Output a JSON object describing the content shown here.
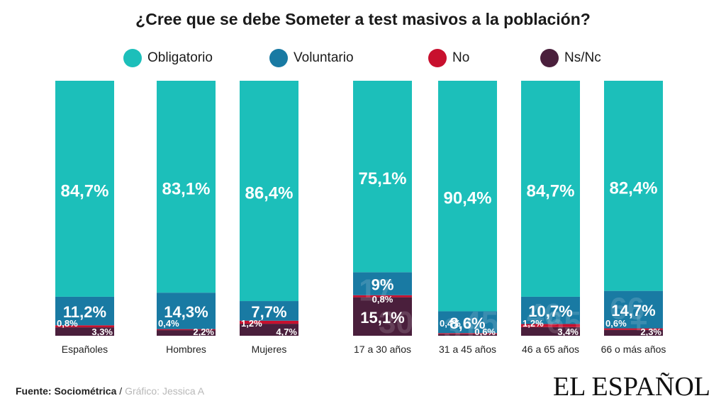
{
  "title": "¿Cree que se debe Someter a test masivos a la población?",
  "legend": [
    {
      "label": "Obligatorio",
      "color": "#1cbfba"
    },
    {
      "label": "Voluntario",
      "color": "#197aa3"
    },
    {
      "label": "No",
      "color": "#c8102e"
    },
    {
      "label": "Ns/Nc",
      "color": "#4a1f3c"
    }
  ],
  "footer": {
    "source_label": "Fuente:",
    "source_name": "Sociométrica",
    "separator": "/",
    "credit": "Gráfico: Jessica A",
    "brand": "EL ESPAÑOL"
  },
  "chart_data": {
    "type": "bar",
    "stacked": true,
    "percent_scale": true,
    "categories": [
      "Españoles",
      "Hombres",
      "Mujeres",
      "17 a 30 años",
      "31 a 45 años",
      "46 a 65 años",
      "66 o más años"
    ],
    "series": [
      {
        "name": "Obligatorio",
        "color": "#1cbfba",
        "values": [
          84.7,
          83.1,
          86.4,
          75.1,
          90.4,
          84.7,
          82.4
        ],
        "labels": [
          "84,7%",
          "83,1%",
          "86,4%",
          "75,1%",
          "90,4%",
          "84,7%",
          "82,4%"
        ]
      },
      {
        "name": "Voluntario",
        "color": "#197aa3",
        "values": [
          11.2,
          14.3,
          7.7,
          9.0,
          8.6,
          10.7,
          14.7
        ],
        "labels": [
          "11,2%",
          "14,3%",
          "7,7%",
          "9%",
          "8,6%",
          "10,7%",
          "14,7%"
        ]
      },
      {
        "name": "No",
        "color": "#c8102e",
        "values": [
          0.8,
          0.4,
          1.2,
          0.8,
          0.4,
          1.2,
          0.6
        ],
        "labels": [
          "0,8%",
          "0,4%",
          "1,2%",
          "0,8%",
          "0,4%",
          "1,2%",
          "0,6%"
        ]
      },
      {
        "name": "Ns/Nc",
        "color": "#4a1f3c",
        "values": [
          3.3,
          2.2,
          4.7,
          15.1,
          0.6,
          3.4,
          2.3
        ],
        "labels": [
          "3,3%",
          "2,2%",
          "4,7%",
          "15,1%",
          "0,6%",
          "3,4%",
          "2,3%"
        ]
      }
    ],
    "watermarks": [
      "",
      "",
      "",
      "17 30",
      "31 45",
      "46 65",
      "66 +"
    ]
  }
}
